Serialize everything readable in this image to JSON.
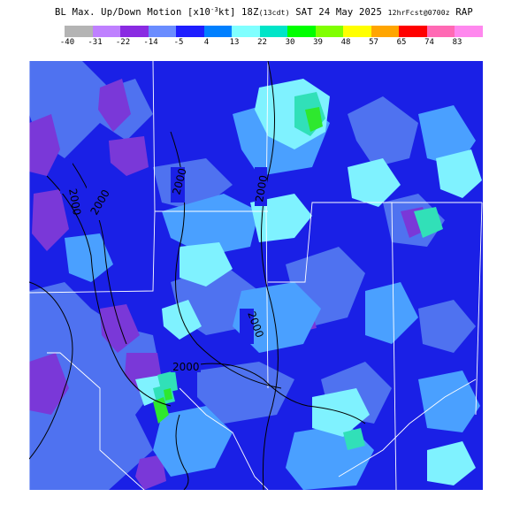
{
  "header": {
    "title_prefix": "BL Max. Up/Down Motion [x10",
    "title_sup": "-3",
    "title_unit_end": "kt] 18Z",
    "title_local": "(13cdt)",
    "title_date": " SAT 24 May 2025 ",
    "title_run": "12hrFcst@0700z",
    "title_model": " RAP"
  },
  "legend": {
    "colors": [
      "#b4b4b4",
      "#bf80ff",
      "#8a2be2",
      "#6a8cff",
      "#1e1eff",
      "#0080ff",
      "#80ffff",
      "#00e5c8",
      "#00ff00",
      "#80ff00",
      "#ffff00",
      "#ffa500",
      "#ff0000",
      "#ff69b4",
      "#ff88ee"
    ],
    "labels": [
      "-40",
      "-31",
      "-22",
      "-14",
      "-5",
      "4",
      "13",
      "22",
      "30",
      "39",
      "48",
      "57",
      "65",
      "74",
      "83"
    ]
  },
  "map": {
    "contour_labels": [
      "2000",
      "2000",
      "2000",
      "2000",
      "2000",
      "2000"
    ],
    "colors": {
      "background": "#1a20e6",
      "weak_down": "#4f72f0",
      "strong_down": "#7a38d8",
      "weak_up": "#4aa0ff",
      "moderate_up": "#7ff2ff",
      "strong_up": "#31e0b8",
      "peak_up": "#2ee82e"
    }
  }
}
